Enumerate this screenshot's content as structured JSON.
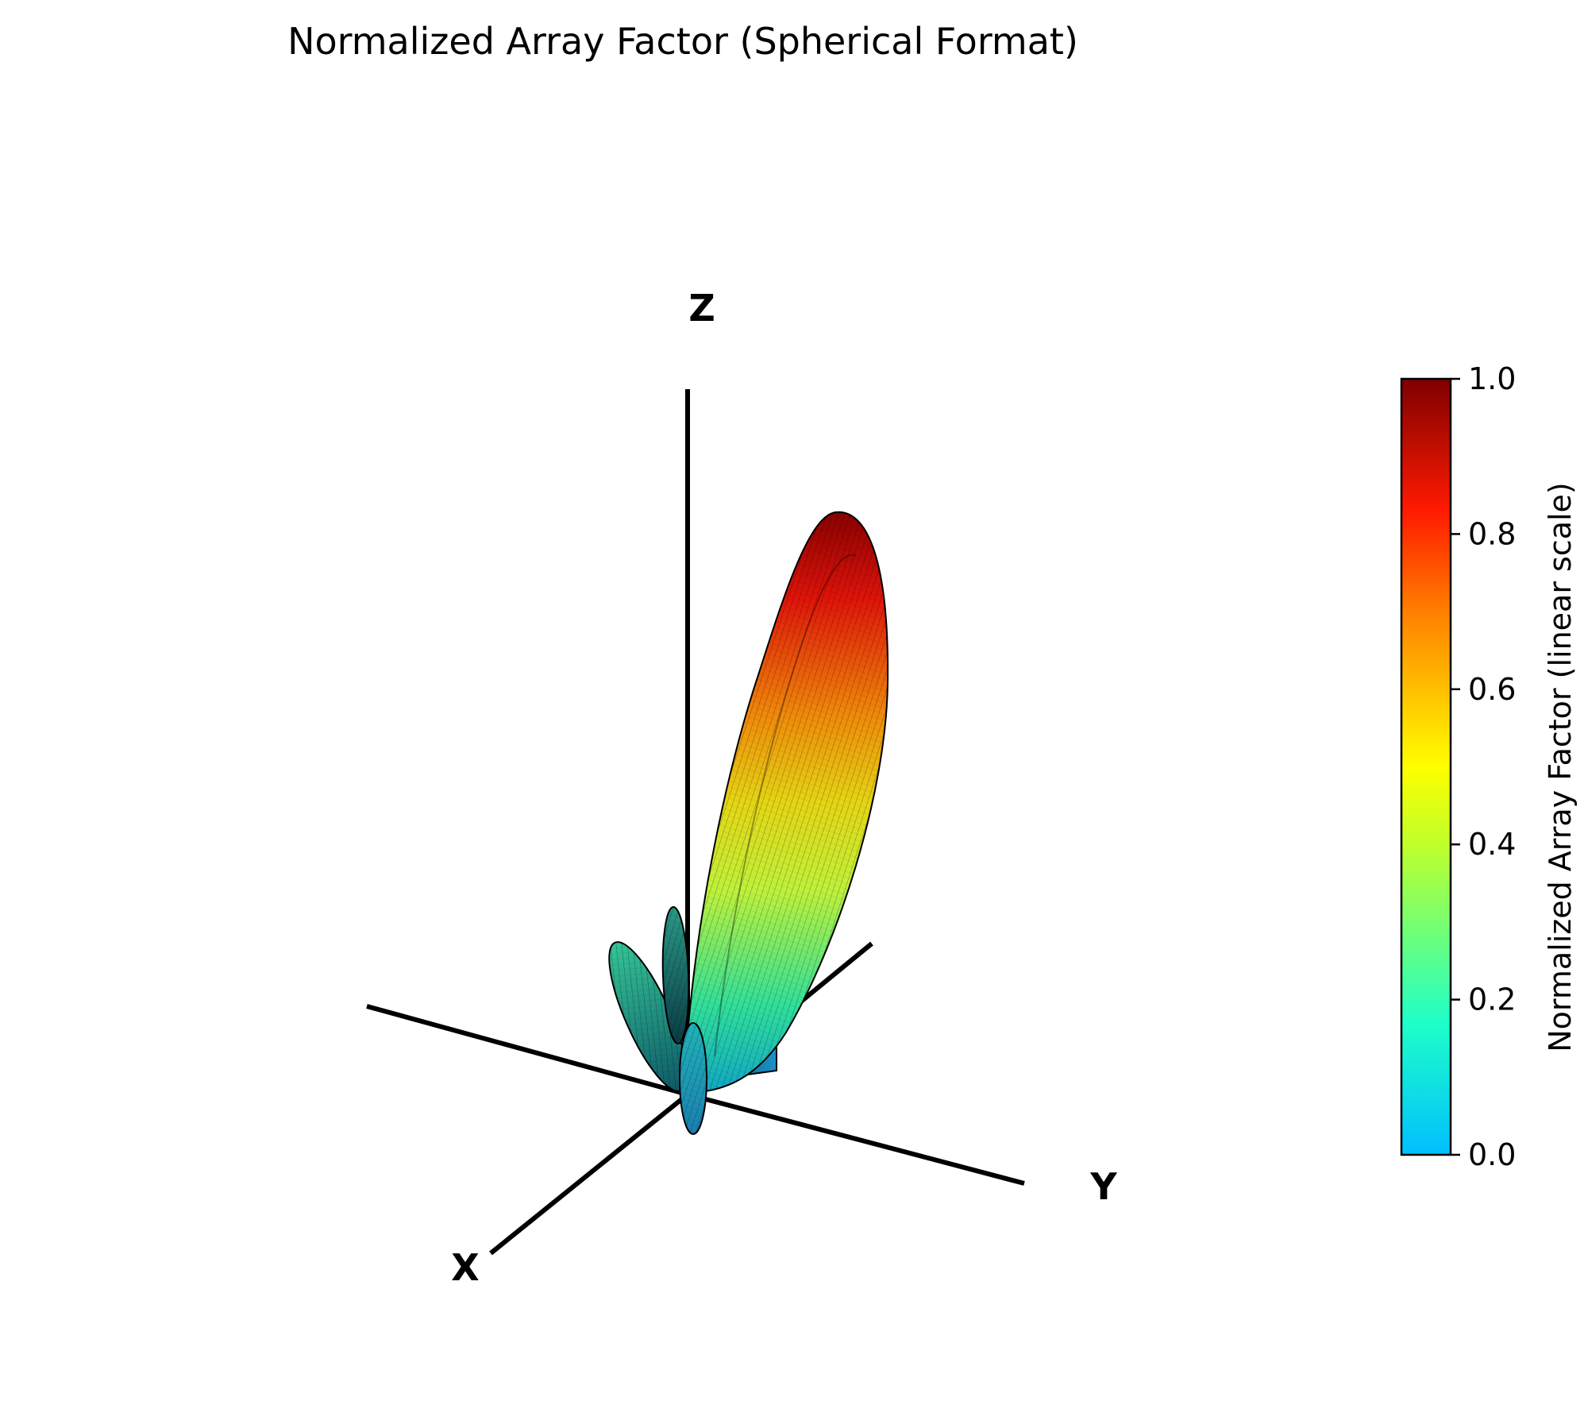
{
  "chart_data": {
    "type": "surface3d",
    "title": "Normalized Array Factor (Spherical Format)",
    "axes": {
      "x_label": "X",
      "y_label": "Y",
      "z_label": "Z"
    },
    "lobes": [
      {
        "name": "",
        "kind": "main",
        "peak_value": 1.0
      },
      {
        "name": "",
        "kind": "side",
        "peak_value": 0.25
      },
      {
        "name": "",
        "kind": "side",
        "peak_value": 0.2
      },
      {
        "name": "",
        "kind": "side",
        "peak_value": 0.15
      },
      {
        "name": "",
        "kind": "side",
        "peak_value": 0.12
      }
    ],
    "colorbar": {
      "label": "Normalized Array Factor (linear scale)",
      "min": 0.0,
      "max": 1.0,
      "ticks": [
        "0.0",
        "0.2",
        "0.4",
        "0.6",
        "0.8",
        "1.0"
      ],
      "colormap": [
        "#00bfff",
        "#1effc8",
        "#bfff2a",
        "#ffff00",
        "#ff7f00",
        "#ff1a00",
        "#7f0000"
      ]
    }
  }
}
